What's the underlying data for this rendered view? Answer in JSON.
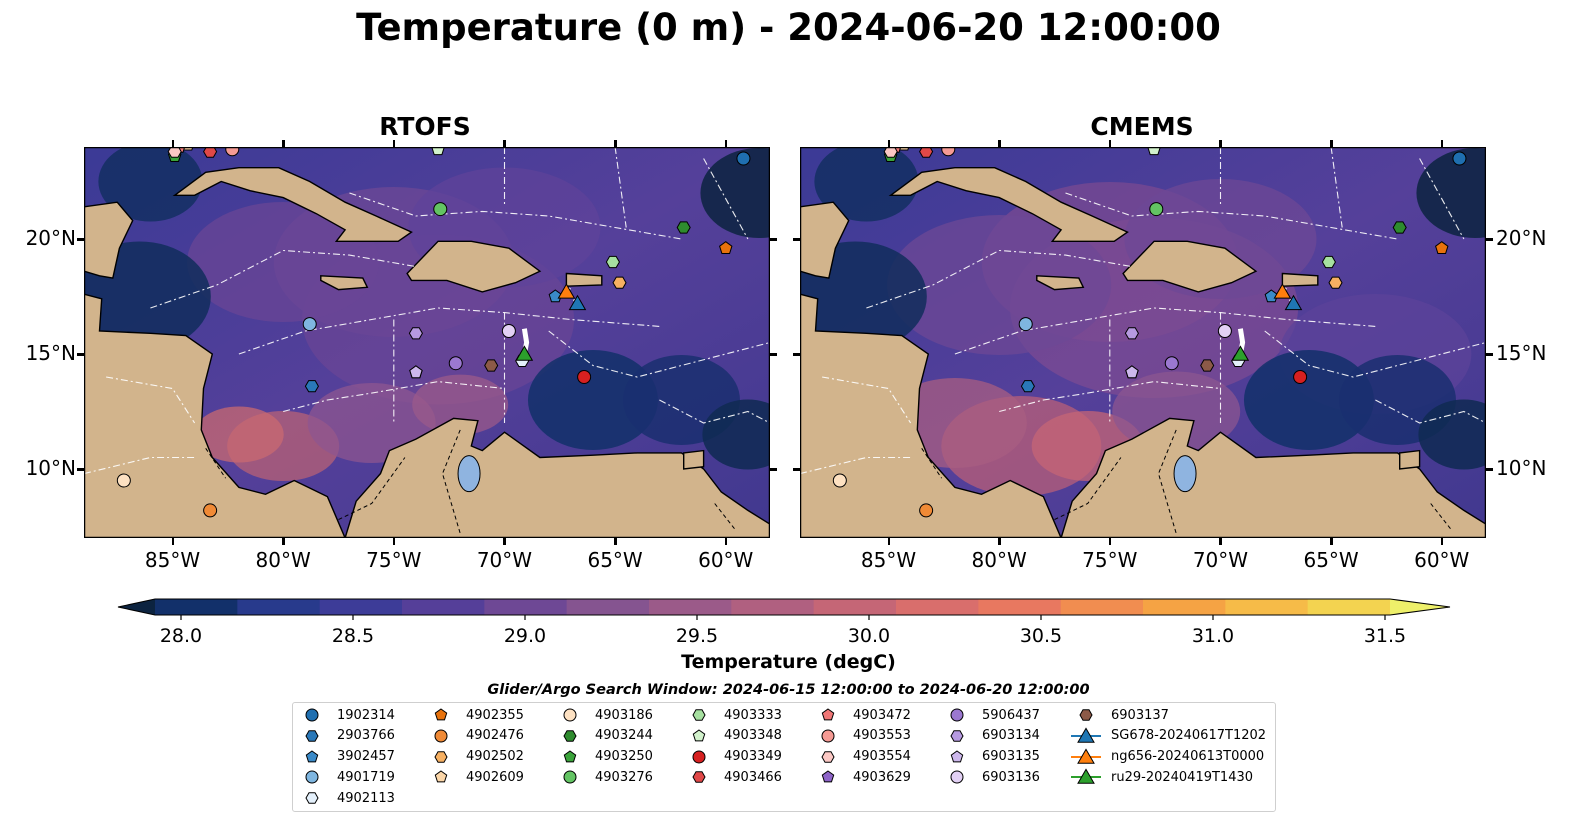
{
  "title": "Temperature (0 m) - 2024-06-20 12:00:00",
  "panels": [
    {
      "title": "RTOFS"
    },
    {
      "title": "CMEMS"
    }
  ],
  "axes": {
    "lon_ticks": [
      "85°W",
      "80°W",
      "75°W",
      "70°W",
      "65°W",
      "60°W"
    ],
    "lat_ticks": [
      "20°N",
      "15°N",
      "10°N"
    ],
    "lon_range": [
      -89,
      -58
    ],
    "lat_range": [
      7,
      24
    ]
  },
  "colorbar": {
    "label": "Temperature (degC)",
    "ticks": [
      "28.0",
      "28.5",
      "29.0",
      "29.5",
      "30.0",
      "30.5",
      "31.0",
      "31.5"
    ],
    "range": [
      28.0,
      31.5
    ],
    "extend": "both",
    "colors": [
      "#0c2340",
      "#12306a",
      "#283a8c",
      "#3d3c98",
      "#553f99",
      "#6e4895",
      "#855490",
      "#9b5a89",
      "#b06080",
      "#c56676",
      "#d96e6c",
      "#e87860",
      "#f18d50",
      "#f5a344",
      "#f6bb48",
      "#f3d350",
      "#eef06a"
    ]
  },
  "search_window": "Glider/Argo Search Window: 2024-06-15 12:00:00 to 2024-06-20 12:00:00",
  "legend": [
    {
      "label": "1902314",
      "marker": "circle",
      "color": "#1f6fb0"
    },
    {
      "label": "2903766",
      "marker": "hexagon",
      "color": "#2a78b8"
    },
    {
      "label": "3902457",
      "marker": "pentagon",
      "color": "#3a8ac8"
    },
    {
      "label": "4901719",
      "marker": "circle",
      "color": "#7fb6e0"
    },
    {
      "label": "4902113",
      "marker": "hexagon",
      "color": "#e4f0fb"
    },
    {
      "label": "4902355",
      "marker": "pentagon",
      "color": "#e8720c"
    },
    {
      "label": "4902476",
      "marker": "circle",
      "color": "#f08a36"
    },
    {
      "label": "4902502",
      "marker": "hexagon",
      "color": "#f6b062"
    },
    {
      "label": "4902609",
      "marker": "pentagon",
      "color": "#fbd6a8"
    },
    {
      "label": "4903186",
      "marker": "circle",
      "color": "#fde1c2"
    },
    {
      "label": "4903244",
      "marker": "hexagon",
      "color": "#2e8b2e"
    },
    {
      "label": "4903250",
      "marker": "pentagon",
      "color": "#3aa33a"
    },
    {
      "label": "4903276",
      "marker": "circle",
      "color": "#63c463"
    },
    {
      "label": "4903333",
      "marker": "hexagon",
      "color": "#a6e0a0"
    },
    {
      "label": "4903348",
      "marker": "pentagon",
      "color": "#d2f2cc"
    },
    {
      "label": "4903349",
      "marker": "circle",
      "color": "#d62020"
    },
    {
      "label": "4903466",
      "marker": "hexagon",
      "color": "#e04848"
    },
    {
      "label": "4903472",
      "marker": "pentagon",
      "color": "#f07676"
    },
    {
      "label": "4903553",
      "marker": "circle",
      "color": "#f59a94"
    },
    {
      "label": "4903554",
      "marker": "hexagon",
      "color": "#fbc8c4"
    },
    {
      "label": "4903629",
      "marker": "pentagon",
      "color": "#8e64c8"
    },
    {
      "label": "5906437",
      "marker": "circle",
      "color": "#9b78d0"
    },
    {
      "label": "6903134",
      "marker": "hexagon",
      "color": "#b69ae0"
    },
    {
      "label": "6903135",
      "marker": "pentagon",
      "color": "#cdb8ec"
    },
    {
      "label": "6903136",
      "marker": "circle",
      "color": "#e2d0f4"
    },
    {
      "label": "6903137",
      "marker": "hexagon",
      "color": "#8c5a48"
    },
    {
      "label": "SG678-20240617T1202",
      "marker": "triangle-line",
      "color": "#1f77b4"
    },
    {
      "label": "ng656-20240613T0000",
      "marker": "triangle-line",
      "color": "#ff7f0e"
    },
    {
      "label": "ru29-20240419T1430",
      "marker": "triangle-line",
      "color": "#2ca02c"
    }
  ],
  "floats": [
    {
      "id": "1902314",
      "lon": -59.2,
      "lat": 23.5
    },
    {
      "id": "2903766",
      "lon": -78.7,
      "lat": 13.6
    },
    {
      "id": "3902457",
      "lon": -67.7,
      "lat": 17.5
    },
    {
      "id": "4901719",
      "lon": -78.8,
      "lat": 16.3
    },
    {
      "id": "4902113",
      "lon": -69.2,
      "lat": 14.7
    },
    {
      "id": "4902355",
      "lon": -60.0,
      "lat": 19.6
    },
    {
      "id": "4902476",
      "lon": -83.3,
      "lat": 8.2
    },
    {
      "id": "4902502",
      "lon": -64.8,
      "lat": 18.1
    },
    {
      "id": "4902609",
      "lon": -84.3,
      "lat": 24.1
    },
    {
      "id": "4903186",
      "lon": -87.2,
      "lat": 9.5
    },
    {
      "id": "4903244",
      "lon": -61.9,
      "lat": 20.5
    },
    {
      "id": "4903250",
      "lon": -84.9,
      "lat": 23.6
    },
    {
      "id": "4903276",
      "lon": -72.9,
      "lat": 21.3
    },
    {
      "id": "4903333",
      "lon": -65.1,
      "lat": 19.0
    },
    {
      "id": "4903348",
      "lon": -73.0,
      "lat": 23.9
    },
    {
      "id": "4903349",
      "lon": -66.4,
      "lat": 14.0
    },
    {
      "id": "4903466",
      "lon": -83.3,
      "lat": 23.8
    },
    {
      "id": "4903472",
      "lon": -84.7,
      "lat": 24.0
    },
    {
      "id": "4903553",
      "lon": -82.3,
      "lat": 23.9
    },
    {
      "id": "4903554",
      "lon": -84.9,
      "lat": 23.8
    },
    {
      "id": "4903629",
      "lon": -74.0,
      "lat": 14.2
    },
    {
      "id": "5906437",
      "lon": -72.2,
      "lat": 14.6
    },
    {
      "id": "6903134",
      "lon": -74.0,
      "lat": 15.9
    },
    {
      "id": "6903135",
      "lon": -74.0,
      "lat": 14.2
    },
    {
      "id": "6903136",
      "lon": -69.8,
      "lat": 16.0
    },
    {
      "id": "6903137",
      "lon": -70.6,
      "lat": 14.5
    }
  ],
  "gliders": [
    {
      "id": "SG678-20240617T1202",
      "lon": -66.7,
      "lat": 17.2,
      "track": [
        [
          -66.8,
          17.4
        ],
        [
          -66.7,
          17.2
        ]
      ]
    },
    {
      "id": "ng656-20240613T0000",
      "lon": -67.2,
      "lat": 17.7,
      "track": [
        [
          -67.1,
          17.9
        ],
        [
          -67.2,
          17.7
        ]
      ]
    },
    {
      "id": "ru29-20240419T1430",
      "lon": -69.1,
      "lat": 15.0,
      "track": [
        [
          -69.1,
          16.1
        ],
        [
          -69.0,
          15.5
        ],
        [
          -69.1,
          15.0
        ]
      ]
    }
  ]
}
